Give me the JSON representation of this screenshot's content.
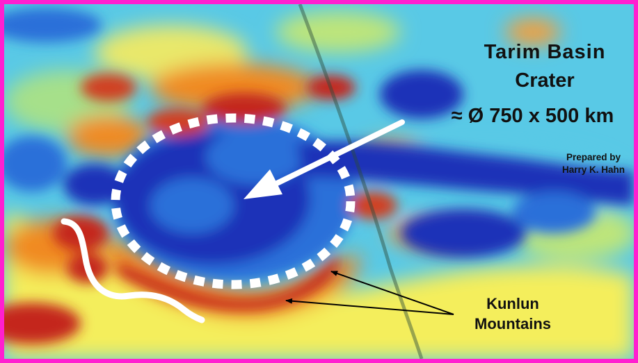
{
  "labels": {
    "title_line1": "Tarim  Basin",
    "title_line2": "Crater",
    "dimension": "≈ Ø 750 x 500 km",
    "credit_line1": "Prepared by",
    "credit_line2": "Harry K. Hahn",
    "mountains_line1": "Kunlun",
    "mountains_line2": "Mountains"
  },
  "colors": {
    "frame_border": "#ff1fd0",
    "deep_blue": "#1a33b8",
    "mid_blue": "#2a6fd9",
    "cyan": "#59c9e6",
    "yellow": "#f4ee5c",
    "orange": "#f08a24",
    "red": "#c4261c",
    "annotation_white": "#ffffff",
    "annotation_black": "#000000"
  }
}
